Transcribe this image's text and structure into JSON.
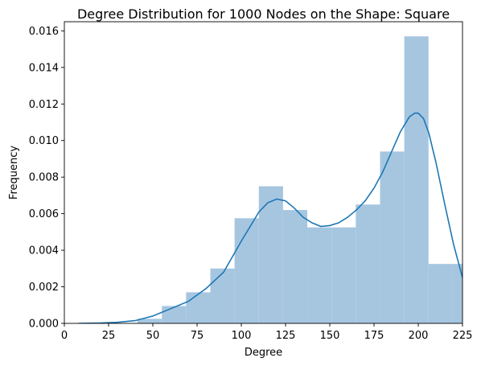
{
  "chart_data": {
    "type": "bar",
    "title": "Degree Distribution for 1000 Nodes on the Shape: Square",
    "xlabel": "Degree",
    "ylabel": "Frequency",
    "xlim": [
      0,
      225
    ],
    "ylim": [
      0,
      0.0165
    ],
    "xticks": [
      0,
      25,
      50,
      75,
      100,
      125,
      150,
      175,
      200,
      225
    ],
    "yticks": [
      0.0,
      0.002,
      0.004,
      0.006,
      0.008,
      0.01,
      0.012,
      0.014,
      0.016
    ],
    "ytick_labels": [
      "0.000",
      "0.002",
      "0.004",
      "0.006",
      "0.008",
      "0.010",
      "0.012",
      "0.014",
      "0.016"
    ],
    "grid": false,
    "histogram": {
      "bin_edges": [
        41.4,
        55.1,
        68.8,
        82.5,
        96.2,
        109.9,
        123.6,
        137.3,
        151.0,
        164.7,
        178.4,
        192.1,
        205.8,
        219.5,
        233.2
      ],
      "values": [
        0.00025,
        0.00095,
        0.0017,
        0.003,
        0.00575,
        0.0075,
        0.0062,
        0.00525,
        0.00525,
        0.0065,
        0.0094,
        0.0157,
        0.00325,
        0.00325
      ],
      "color": "#a6c6e0"
    },
    "kde": {
      "x": [
        8,
        20,
        30,
        40,
        50,
        60,
        70,
        80,
        90,
        100,
        110,
        115,
        120,
        125,
        130,
        135,
        140,
        145,
        150,
        155,
        160,
        165,
        170,
        175,
        180,
        185,
        190,
        195,
        198,
        200,
        203,
        206,
        210,
        215,
        220,
        225
      ],
      "y": [
        0.0,
        2e-05,
        6e-05,
        0.00015,
        0.0004,
        0.0008,
        0.0012,
        0.0019,
        0.0028,
        0.0045,
        0.0061,
        0.0066,
        0.0068,
        0.0067,
        0.0063,
        0.0058,
        0.0055,
        0.0053,
        0.00535,
        0.0055,
        0.0058,
        0.0062,
        0.0067,
        0.0074,
        0.0083,
        0.0094,
        0.0105,
        0.0113,
        0.0115,
        0.0115,
        0.0112,
        0.0104,
        0.0088,
        0.0065,
        0.0043,
        0.0025
      ],
      "color": "#1f77b4"
    }
  }
}
